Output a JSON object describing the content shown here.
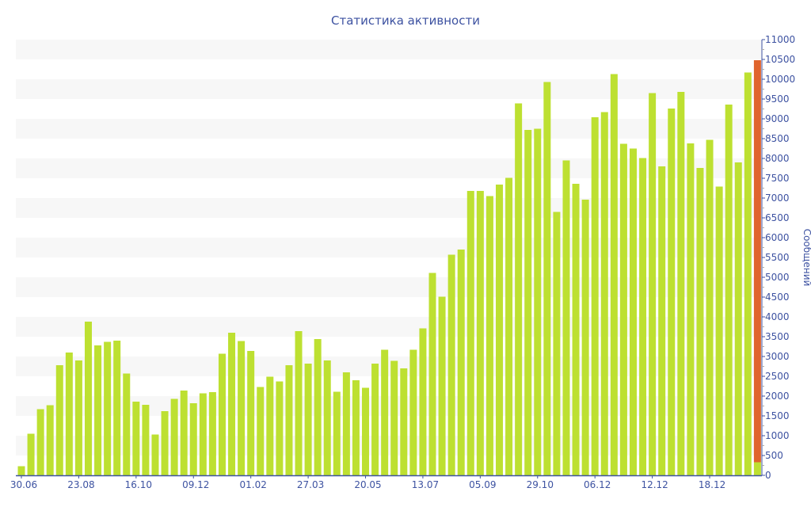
{
  "chart_data": {
    "type": "bar",
    "title": "Статистика активности",
    "xlabel": "",
    "ylabel": "Сообщений",
    "ylim": [
      0,
      11000
    ],
    "ytick_step": 500,
    "grid": "alternating horizontal bands",
    "x_tick_labels": [
      "30.06",
      "23.08",
      "16.10",
      "09.12",
      "01.02",
      "27.03",
      "20.05",
      "13.07",
      "05.09",
      "29.10",
      "06.12",
      "12.12",
      "18.12"
    ],
    "x_tick_every": 6,
    "colors": {
      "primary": "#bde031",
      "secondary": "#e0642d",
      "axis": "#3d52a1",
      "band": "#f7f7f7"
    },
    "series": [
      {
        "name": "primary",
        "values": [
          230,
          1050,
          1670,
          1770,
          2780,
          3100,
          2900,
          3880,
          3280,
          3370,
          3400,
          2570,
          1860,
          1780,
          1030,
          1620,
          1930,
          2140,
          1820,
          2070,
          2100,
          3070,
          3600,
          3390,
          3140,
          2230,
          2490,
          2370,
          2780,
          3640,
          2820,
          3440,
          2900,
          2110,
          2600,
          2400,
          2210,
          2820,
          3170,
          2890,
          2700,
          3170,
          3710,
          5110,
          4510,
          5570,
          5700,
          7180,
          7180,
          7050,
          7340,
          7510,
          9390,
          8720,
          8750,
          9930,
          6650,
          7950,
          7360,
          6960,
          9040,
          9170,
          10130,
          8370,
          8250,
          8010,
          9650,
          7800,
          9260,
          9680,
          8380,
          7760,
          8470,
          7290,
          9360,
          7900,
          10170,
          330
        ]
      },
      {
        "name": "secondary",
        "values": [
          0,
          0,
          0,
          0,
          0,
          0,
          0,
          0,
          0,
          0,
          0,
          0,
          0,
          0,
          0,
          0,
          0,
          0,
          0,
          0,
          0,
          0,
          0,
          0,
          0,
          0,
          0,
          0,
          0,
          0,
          0,
          0,
          0,
          0,
          0,
          0,
          0,
          0,
          0,
          0,
          0,
          0,
          0,
          0,
          0,
          0,
          0,
          0,
          0,
          0,
          0,
          0,
          0,
          0,
          0,
          0,
          0,
          0,
          0,
          0,
          0,
          0,
          0,
          0,
          0,
          0,
          0,
          0,
          0,
          0,
          0,
          0,
          0,
          0,
          0,
          0,
          0,
          10150
        ]
      }
    ]
  }
}
